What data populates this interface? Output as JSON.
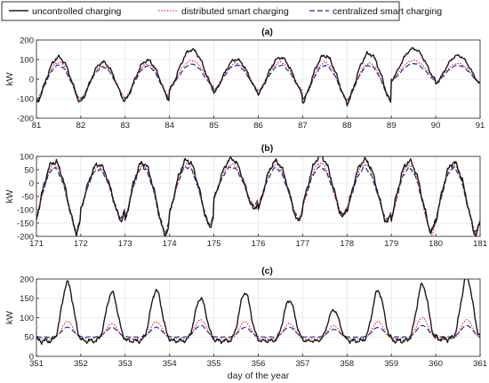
{
  "legend": {
    "items": [
      {
        "label": "uncontrolled charging",
        "color": "#1a1a1a",
        "dash": "solid"
      },
      {
        "label": "distributed smart charging",
        "color": "#e8141e",
        "dash": "dotted"
      },
      {
        "label": "centralized smart charging",
        "color": "#1f2fa8",
        "dash": "dashed"
      }
    ],
    "placement": "top-center"
  },
  "chart_data": [
    {
      "type": "line",
      "title": "(a)",
      "xlabel": "",
      "ylabel": "kW",
      "xlim": [
        81,
        91
      ],
      "ylim": [
        -200,
        200
      ],
      "xticks": [
        81,
        82,
        83,
        84,
        85,
        86,
        87,
        88,
        89,
        90,
        91
      ],
      "yticks": [
        -200,
        -100,
        0,
        100,
        200
      ],
      "grid": true,
      "peak_days": [
        81.5,
        82.5,
        83.5,
        84.5,
        85.5,
        86.5,
        87.5,
        88.5,
        89.5,
        90.5
      ],
      "series": [
        {
          "name": "uncontrolled charging",
          "day_highs": [
            110,
            85,
            95,
            150,
            100,
            110,
            120,
            130,
            155,
            120
          ],
          "night_lows": [
            -125,
            -115,
            -110,
            -55,
            -70,
            -75,
            -120,
            -125,
            -5,
            -25
          ]
        },
        {
          "name": "distributed smart charging",
          "day_highs": [
            85,
            65,
            75,
            95,
            80,
            85,
            85,
            80,
            95,
            80
          ],
          "night_lows": [
            -110,
            -100,
            -95,
            -40,
            -55,
            -60,
            -105,
            -110,
            0,
            -15
          ]
        },
        {
          "name": "centralized smart charging",
          "day_highs": [
            70,
            60,
            65,
            75,
            70,
            70,
            70,
            70,
            80,
            70
          ],
          "night_lows": [
            -110,
            -100,
            -100,
            -45,
            -60,
            -65,
            -105,
            -110,
            -10,
            -20
          ]
        }
      ]
    },
    {
      "type": "line",
      "title": "(b)",
      "xlabel": "",
      "ylabel": "kW",
      "xlim": [
        171,
        181
      ],
      "ylim": [
        -200,
        100
      ],
      "xticks": [
        171,
        172,
        173,
        174,
        175,
        176,
        177,
        178,
        179,
        180,
        181
      ],
      "yticks": [
        -200,
        -150,
        -100,
        -50,
        0,
        50,
        100
      ],
      "grid": true,
      "peak_days": [
        171.4,
        172.4,
        173.4,
        174.4,
        175.4,
        176.4,
        177.4,
        178.4,
        179.4,
        180.4
      ],
      "series": [
        {
          "name": "uncontrolled charging",
          "day_highs": [
            80,
            70,
            75,
            85,
            90,
            80,
            100,
            85,
            80,
            75
          ],
          "night_lows": [
            -185,
            -140,
            -195,
            -165,
            -100,
            -145,
            -130,
            -150,
            -185,
            -195
          ]
        },
        {
          "name": "distributed smart charging",
          "day_highs": [
            70,
            60,
            65,
            70,
            70,
            70,
            75,
            70,
            70,
            70
          ],
          "night_lows": [
            -180,
            -135,
            -190,
            -160,
            -90,
            -140,
            -125,
            -145,
            -195,
            -190
          ]
        },
        {
          "name": "centralized smart charging",
          "day_highs": [
            55,
            50,
            55,
            60,
            60,
            55,
            60,
            55,
            55,
            55
          ],
          "night_lows": [
            -175,
            -130,
            -185,
            -155,
            -85,
            -135,
            -120,
            -140,
            -185,
            -185
          ]
        }
      ]
    },
    {
      "type": "line",
      "title": "(c)",
      "xlabel": "day of the year",
      "ylabel": "kW",
      "xlim": [
        351,
        361
      ],
      "ylim": [
        0,
        200
      ],
      "xticks": [
        351,
        352,
        353,
        354,
        355,
        356,
        357,
        358,
        359,
        360,
        361
      ],
      "yticks": [
        0,
        50,
        100,
        150,
        200
      ],
      "grid": true,
      "peak_days": [
        351.7,
        352.7,
        353.7,
        354.7,
        355.7,
        356.7,
        357.7,
        358.7,
        359.7,
        360.7
      ],
      "series": [
        {
          "name": "uncontrolled charging",
          "day_highs": [
            190,
            165,
            170,
            150,
            165,
            145,
            120,
            170,
            185,
            205
          ],
          "night_lows": [
            40,
            40,
            40,
            40,
            40,
            40,
            40,
            40,
            40,
            45
          ]
        },
        {
          "name": "distributed smart charging",
          "day_highs": [
            90,
            85,
            90,
            95,
            90,
            85,
            80,
            90,
            100,
            95
          ],
          "night_lows": [
            45,
            45,
            45,
            45,
            45,
            45,
            45,
            45,
            45,
            45
          ]
        },
        {
          "name": "centralized smart charging",
          "day_highs": [
            75,
            75,
            75,
            80,
            75,
            75,
            70,
            75,
            80,
            80
          ],
          "night_lows": [
            50,
            50,
            50,
            50,
            50,
            50,
            50,
            50,
            50,
            50
          ]
        }
      ]
    }
  ]
}
